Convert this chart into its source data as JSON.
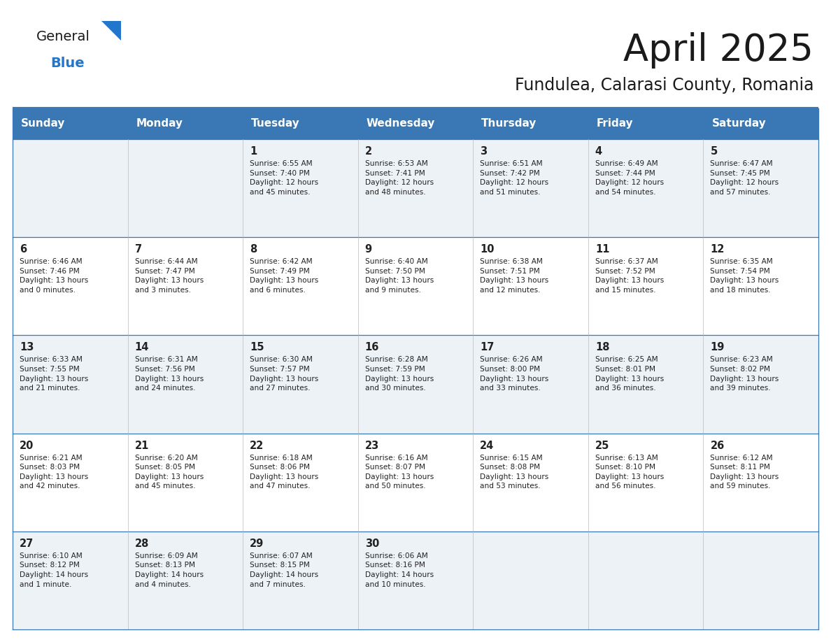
{
  "title": "April 2025",
  "subtitle": "Fundulea, Calarasi County, Romania",
  "header_bg_color": "#3a78b5",
  "header_text_color": "#ffffff",
  "cell_bg_light": "#edf2f7",
  "cell_bg_white": "#ffffff",
  "border_color": "#3a78b5",
  "text_color": "#222222",
  "days_of_week": [
    "Sunday",
    "Monday",
    "Tuesday",
    "Wednesday",
    "Thursday",
    "Friday",
    "Saturday"
  ],
  "weeks": [
    [
      {
        "day": null,
        "info": null
      },
      {
        "day": null,
        "info": null
      },
      {
        "day": 1,
        "info": "Sunrise: 6:55 AM\nSunset: 7:40 PM\nDaylight: 12 hours\nand 45 minutes."
      },
      {
        "day": 2,
        "info": "Sunrise: 6:53 AM\nSunset: 7:41 PM\nDaylight: 12 hours\nand 48 minutes."
      },
      {
        "day": 3,
        "info": "Sunrise: 6:51 AM\nSunset: 7:42 PM\nDaylight: 12 hours\nand 51 minutes."
      },
      {
        "day": 4,
        "info": "Sunrise: 6:49 AM\nSunset: 7:44 PM\nDaylight: 12 hours\nand 54 minutes."
      },
      {
        "day": 5,
        "info": "Sunrise: 6:47 AM\nSunset: 7:45 PM\nDaylight: 12 hours\nand 57 minutes."
      }
    ],
    [
      {
        "day": 6,
        "info": "Sunrise: 6:46 AM\nSunset: 7:46 PM\nDaylight: 13 hours\nand 0 minutes."
      },
      {
        "day": 7,
        "info": "Sunrise: 6:44 AM\nSunset: 7:47 PM\nDaylight: 13 hours\nand 3 minutes."
      },
      {
        "day": 8,
        "info": "Sunrise: 6:42 AM\nSunset: 7:49 PM\nDaylight: 13 hours\nand 6 minutes."
      },
      {
        "day": 9,
        "info": "Sunrise: 6:40 AM\nSunset: 7:50 PM\nDaylight: 13 hours\nand 9 minutes."
      },
      {
        "day": 10,
        "info": "Sunrise: 6:38 AM\nSunset: 7:51 PM\nDaylight: 13 hours\nand 12 minutes."
      },
      {
        "day": 11,
        "info": "Sunrise: 6:37 AM\nSunset: 7:52 PM\nDaylight: 13 hours\nand 15 minutes."
      },
      {
        "day": 12,
        "info": "Sunrise: 6:35 AM\nSunset: 7:54 PM\nDaylight: 13 hours\nand 18 minutes."
      }
    ],
    [
      {
        "day": 13,
        "info": "Sunrise: 6:33 AM\nSunset: 7:55 PM\nDaylight: 13 hours\nand 21 minutes."
      },
      {
        "day": 14,
        "info": "Sunrise: 6:31 AM\nSunset: 7:56 PM\nDaylight: 13 hours\nand 24 minutes."
      },
      {
        "day": 15,
        "info": "Sunrise: 6:30 AM\nSunset: 7:57 PM\nDaylight: 13 hours\nand 27 minutes."
      },
      {
        "day": 16,
        "info": "Sunrise: 6:28 AM\nSunset: 7:59 PM\nDaylight: 13 hours\nand 30 minutes."
      },
      {
        "day": 17,
        "info": "Sunrise: 6:26 AM\nSunset: 8:00 PM\nDaylight: 13 hours\nand 33 minutes."
      },
      {
        "day": 18,
        "info": "Sunrise: 6:25 AM\nSunset: 8:01 PM\nDaylight: 13 hours\nand 36 minutes."
      },
      {
        "day": 19,
        "info": "Sunrise: 6:23 AM\nSunset: 8:02 PM\nDaylight: 13 hours\nand 39 minutes."
      }
    ],
    [
      {
        "day": 20,
        "info": "Sunrise: 6:21 AM\nSunset: 8:03 PM\nDaylight: 13 hours\nand 42 minutes."
      },
      {
        "day": 21,
        "info": "Sunrise: 6:20 AM\nSunset: 8:05 PM\nDaylight: 13 hours\nand 45 minutes."
      },
      {
        "day": 22,
        "info": "Sunrise: 6:18 AM\nSunset: 8:06 PM\nDaylight: 13 hours\nand 47 minutes."
      },
      {
        "day": 23,
        "info": "Sunrise: 6:16 AM\nSunset: 8:07 PM\nDaylight: 13 hours\nand 50 minutes."
      },
      {
        "day": 24,
        "info": "Sunrise: 6:15 AM\nSunset: 8:08 PM\nDaylight: 13 hours\nand 53 minutes."
      },
      {
        "day": 25,
        "info": "Sunrise: 6:13 AM\nSunset: 8:10 PM\nDaylight: 13 hours\nand 56 minutes."
      },
      {
        "day": 26,
        "info": "Sunrise: 6:12 AM\nSunset: 8:11 PM\nDaylight: 13 hours\nand 59 minutes."
      }
    ],
    [
      {
        "day": 27,
        "info": "Sunrise: 6:10 AM\nSunset: 8:12 PM\nDaylight: 14 hours\nand 1 minute."
      },
      {
        "day": 28,
        "info": "Sunrise: 6:09 AM\nSunset: 8:13 PM\nDaylight: 14 hours\nand 4 minutes."
      },
      {
        "day": 29,
        "info": "Sunrise: 6:07 AM\nSunset: 8:15 PM\nDaylight: 14 hours\nand 7 minutes."
      },
      {
        "day": 30,
        "info": "Sunrise: 6:06 AM\nSunset: 8:16 PM\nDaylight: 14 hours\nand 10 minutes."
      },
      {
        "day": null,
        "info": null
      },
      {
        "day": null,
        "info": null
      },
      {
        "day": null,
        "info": null
      }
    ]
  ],
  "fig_width": 11.88,
  "fig_height": 9.18,
  "dpi": 100
}
